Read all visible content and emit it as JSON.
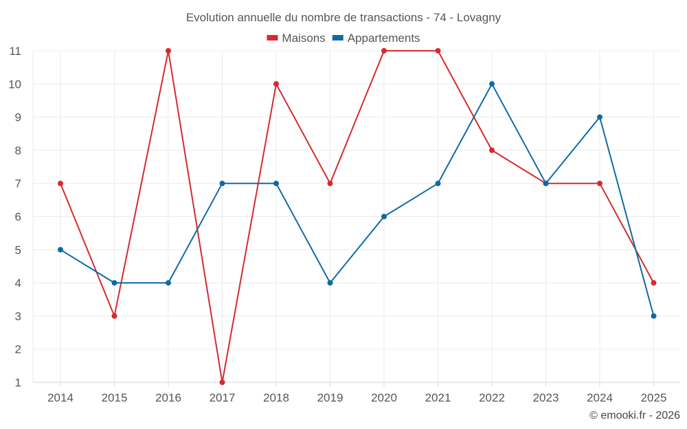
{
  "chart_data": {
    "type": "line",
    "title": "Evolution annuelle du nombre de transactions - 74 - Lovagny",
    "categories": [
      "2014",
      "2015",
      "2016",
      "2017",
      "2018",
      "2019",
      "2020",
      "2021",
      "2022",
      "2023",
      "2024",
      "2025"
    ],
    "series": [
      {
        "name": "Maisons",
        "color": "#d62a2e",
        "values": [
          7,
          3,
          11,
          1,
          10,
          7,
          11,
          11,
          8,
          7,
          7,
          4
        ]
      },
      {
        "name": "Appartements",
        "color": "#0e6aa6",
        "values": [
          5,
          4,
          4,
          7,
          7,
          4,
          6,
          7,
          10,
          7,
          9,
          3
        ]
      }
    ],
    "ylim": [
      1,
      11
    ],
    "yticks": [
      1,
      2,
      3,
      4,
      5,
      6,
      7,
      8,
      9,
      10,
      11
    ],
    "xlabel": "",
    "ylabel": "",
    "grid": true,
    "legend_position": "top-center"
  },
  "credit": "© emooki.fr - 2026"
}
